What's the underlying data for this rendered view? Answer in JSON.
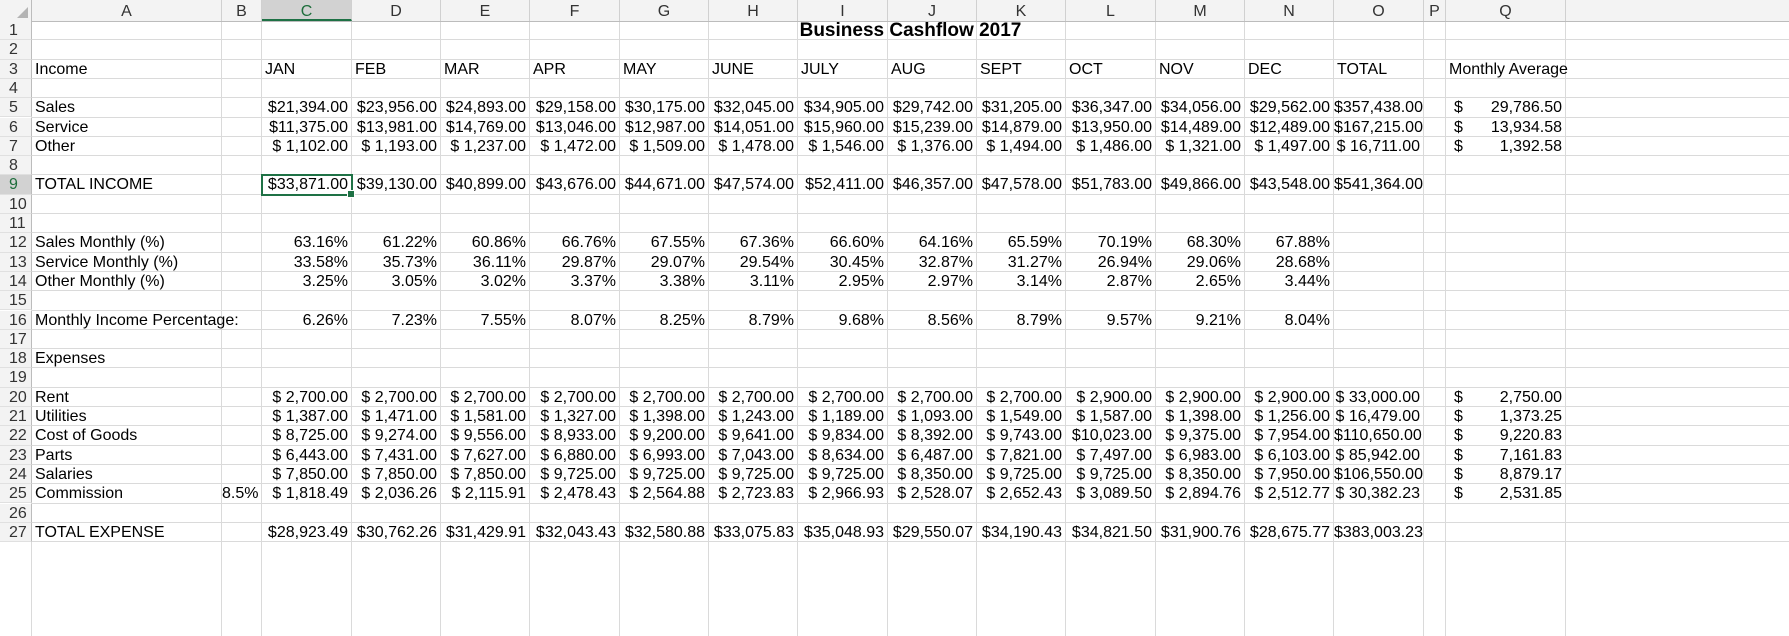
{
  "columns": [
    "A",
    "B",
    "C",
    "D",
    "E",
    "F",
    "G",
    "H",
    "I",
    "J",
    "K",
    "L",
    "M",
    "N",
    "O",
    "P",
    "Q"
  ],
  "selected_column": "C",
  "selected_row": 9,
  "rows": [
    "1",
    "2",
    "3",
    "4",
    "5",
    "6",
    "7",
    "8",
    "9",
    "10",
    "11",
    "12",
    "13",
    "14",
    "15",
    "16",
    "17",
    "18",
    "19",
    "20",
    "21",
    "22",
    "23",
    "24",
    "25",
    "26",
    "27"
  ],
  "title": "Business Cashflow 2017",
  "header_row": {
    "label": "Income",
    "months": [
      "JAN",
      "FEB",
      "MAR",
      "APR",
      "MAY",
      "JUNE",
      "JULY",
      "AUG",
      "SEPT",
      "OCT",
      "NOV",
      "DEC"
    ],
    "total": "TOTAL",
    "average": "Monthly Average"
  },
  "income": [
    {
      "label": "Sales",
      "values": [
        "$21,394.00",
        "$23,956.00",
        "$24,893.00",
        "$29,158.00",
        "$30,175.00",
        "$32,045.00",
        "$34,905.00",
        "$29,742.00",
        "$31,205.00",
        "$36,347.00",
        "$34,056.00",
        "$29,562.00"
      ],
      "total": "$357,438.00",
      "avg": "29,786.50"
    },
    {
      "label": "Service",
      "values": [
        "$11,375.00",
        "$13,981.00",
        "$14,769.00",
        "$13,046.00",
        "$12,987.00",
        "$14,051.00",
        "$15,960.00",
        "$15,239.00",
        "$14,879.00",
        "$13,950.00",
        "$14,489.00",
        "$12,489.00"
      ],
      "total": "$167,215.00",
      "avg": "13,934.58"
    },
    {
      "label": "Other",
      "values": [
        "$ 1,102.00",
        "$ 1,193.00",
        "$ 1,237.00",
        "$ 1,472.00",
        "$ 1,509.00",
        "$ 1,478.00",
        "$ 1,546.00",
        "$ 1,376.00",
        "$ 1,494.00",
        "$ 1,486.00",
        "$ 1,321.00",
        "$ 1,497.00"
      ],
      "total": "$ 16,711.00",
      "avg": "1,392.58"
    }
  ],
  "total_income": {
    "label": "TOTAL INCOME",
    "values": [
      "$33,871.00",
      "$39,130.00",
      "$40,899.00",
      "$43,676.00",
      "$44,671.00",
      "$47,574.00",
      "$52,411.00",
      "$46,357.00",
      "$47,578.00",
      "$51,783.00",
      "$49,866.00",
      "$43,548.00"
    ],
    "total": "$541,364.00"
  },
  "percentages": [
    {
      "label": "Sales Monthly (%)",
      "values": [
        "63.16%",
        "61.22%",
        "60.86%",
        "66.76%",
        "67.55%",
        "67.36%",
        "66.60%",
        "64.16%",
        "65.59%",
        "70.19%",
        "68.30%",
        "67.88%"
      ]
    },
    {
      "label": "Service Monthly (%)",
      "values": [
        "33.58%",
        "35.73%",
        "36.11%",
        "29.87%",
        "29.07%",
        "29.54%",
        "30.45%",
        "32.87%",
        "31.27%",
        "26.94%",
        "29.06%",
        "28.68%"
      ]
    },
    {
      "label": "Other Monthly (%)",
      "values": [
        "3.25%",
        "3.05%",
        "3.02%",
        "3.37%",
        "3.38%",
        "3.11%",
        "2.95%",
        "2.97%",
        "3.14%",
        "2.87%",
        "2.65%",
        "3.44%"
      ]
    }
  ],
  "monthly_income_pct": {
    "label": "Monthly Income Percentage:",
    "values": [
      "6.26%",
      "7.23%",
      "7.55%",
      "8.07%",
      "8.25%",
      "8.79%",
      "9.68%",
      "8.56%",
      "8.79%",
      "9.57%",
      "9.21%",
      "8.04%"
    ]
  },
  "expenses_label": "Expenses",
  "commission_rate": "8.5%",
  "currency_symbol": "$",
  "expenses": [
    {
      "label": "Rent",
      "values": [
        "$ 2,700.00",
        "$ 2,700.00",
        "$ 2,700.00",
        "$ 2,700.00",
        "$ 2,700.00",
        "$ 2,700.00",
        "$ 2,700.00",
        "$ 2,700.00",
        "$ 2,700.00",
        "$ 2,900.00",
        "$ 2,900.00",
        "$ 2,900.00"
      ],
      "total": "$ 33,000.00",
      "avg": "2,750.00"
    },
    {
      "label": "Utilities",
      "values": [
        "$ 1,387.00",
        "$ 1,471.00",
        "$ 1,581.00",
        "$ 1,327.00",
        "$ 1,398.00",
        "$ 1,243.00",
        "$ 1,189.00",
        "$ 1,093.00",
        "$ 1,549.00",
        "$ 1,587.00",
        "$ 1,398.00",
        "$ 1,256.00"
      ],
      "total": "$ 16,479.00",
      "avg": "1,373.25"
    },
    {
      "label": "Cost of Goods",
      "values": [
        "$ 8,725.00",
        "$ 9,274.00",
        "$ 9,556.00",
        "$ 8,933.00",
        "$ 9,200.00",
        "$ 9,641.00",
        "$ 9,834.00",
        "$ 8,392.00",
        "$ 9,743.00",
        "$10,023.00",
        "$ 9,375.00",
        "$ 7,954.00"
      ],
      "total": "$110,650.00",
      "avg": "9,220.83"
    },
    {
      "label": "Parts",
      "values": [
        "$ 6,443.00",
        "$ 7,431.00",
        "$ 7,627.00",
        "$ 6,880.00",
        "$ 6,993.00",
        "$ 7,043.00",
        "$ 8,634.00",
        "$ 6,487.00",
        "$ 7,821.00",
        "$ 7,497.00",
        "$ 6,983.00",
        "$ 6,103.00"
      ],
      "total": "$ 85,942.00",
      "avg": "7,161.83"
    },
    {
      "label": "Salaries",
      "values": [
        "$ 7,850.00",
        "$ 7,850.00",
        "$ 7,850.00",
        "$ 9,725.00",
        "$ 9,725.00",
        "$ 9,725.00",
        "$ 9,725.00",
        "$ 8,350.00",
        "$ 9,725.00",
        "$ 9,725.00",
        "$ 8,350.00",
        "$ 7,950.00"
      ],
      "total": "$106,550.00",
      "avg": "8,879.17"
    },
    {
      "label": "Commission",
      "values": [
        "$ 1,818.49",
        "$ 2,036.26",
        "$ 2,115.91",
        "$ 2,478.43",
        "$ 2,564.88",
        "$ 2,723.83",
        "$ 2,966.93",
        "$ 2,528.07",
        "$ 2,652.43",
        "$ 3,089.50",
        "$ 2,894.76",
        "$ 2,512.77"
      ],
      "total": "$ 30,382.23",
      "avg": "2,531.85"
    }
  ],
  "total_expense": {
    "label": "TOTAL EXPENSE",
    "values": [
      "$28,923.49",
      "$30,762.26",
      "$31,429.91",
      "$32,043.43",
      "$32,580.88",
      "$33,075.83",
      "$35,048.93",
      "$29,550.07",
      "$34,190.43",
      "$34,821.50",
      "$31,900.76",
      "$28,675.77"
    ],
    "total": "$383,003.23"
  }
}
